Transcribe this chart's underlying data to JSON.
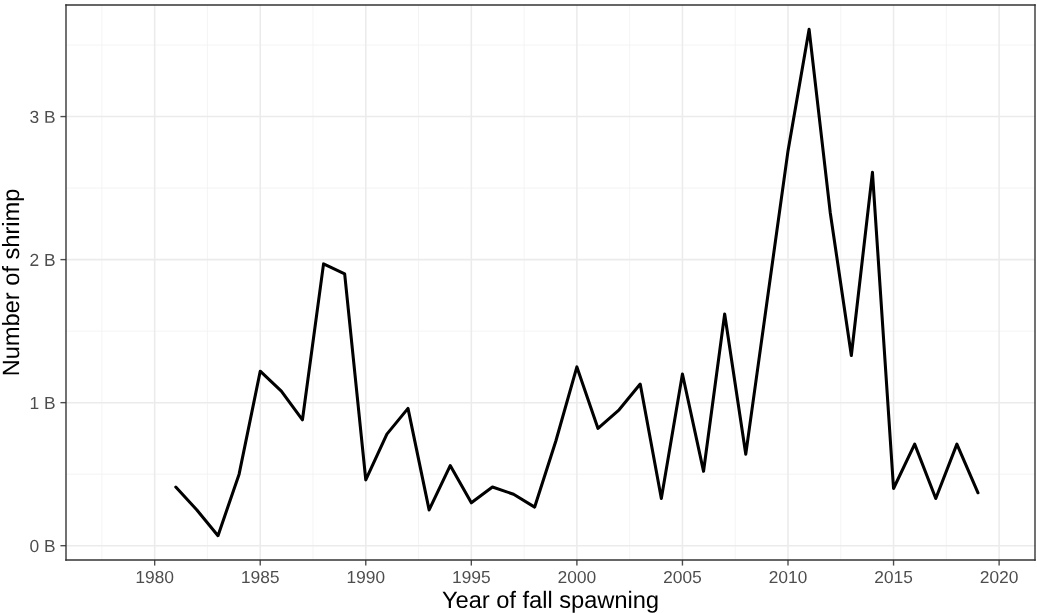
{
  "chart_data": {
    "type": "line",
    "xlabel": "Year of fall spawning",
    "ylabel": "Number of shrimp",
    "x": [
      1981,
      1982,
      1983,
      1984,
      1985,
      1986,
      1987,
      1988,
      1989,
      1990,
      1991,
      1992,
      1993,
      1994,
      1995,
      1996,
      1997,
      1998,
      1999,
      2000,
      2001,
      2002,
      2003,
      2004,
      2005,
      2006,
      2007,
      2008,
      2009,
      2010,
      2011,
      2012,
      2013,
      2014,
      2015,
      2016,
      2017,
      2018,
      2019
    ],
    "series": [
      {
        "color": "#000000",
        "values": [
          0.41,
          0.25,
          0.07,
          0.5,
          1.22,
          1.08,
          0.88,
          1.97,
          1.9,
          0.46,
          0.78,
          0.96,
          0.25,
          0.56,
          0.3,
          0.41,
          0.36,
          0.27,
          0.73,
          1.25,
          0.82,
          0.95,
          1.13,
          0.33,
          1.2,
          0.52,
          1.62,
          0.64,
          1.7,
          2.76,
          3.61,
          2.33,
          1.33,
          2.61,
          0.4,
          0.71,
          0.33,
          0.71,
          0.37
        ]
      }
    ],
    "xlim": [
      1975.8,
      2021.7
    ],
    "ylim": [
      -0.1,
      3.78
    ],
    "xticks": [
      1980,
      1985,
      1990,
      1995,
      2000,
      2005,
      2010,
      2015,
      2020
    ],
    "yticks": [
      {
        "value": 0,
        "label": "0 B"
      },
      {
        "value": 1,
        "label": "1 B"
      },
      {
        "value": 2,
        "label": "2 B"
      },
      {
        "value": 3,
        "label": "3 B"
      }
    ],
    "grid": true,
    "line_style": "solid",
    "marker": "none"
  }
}
